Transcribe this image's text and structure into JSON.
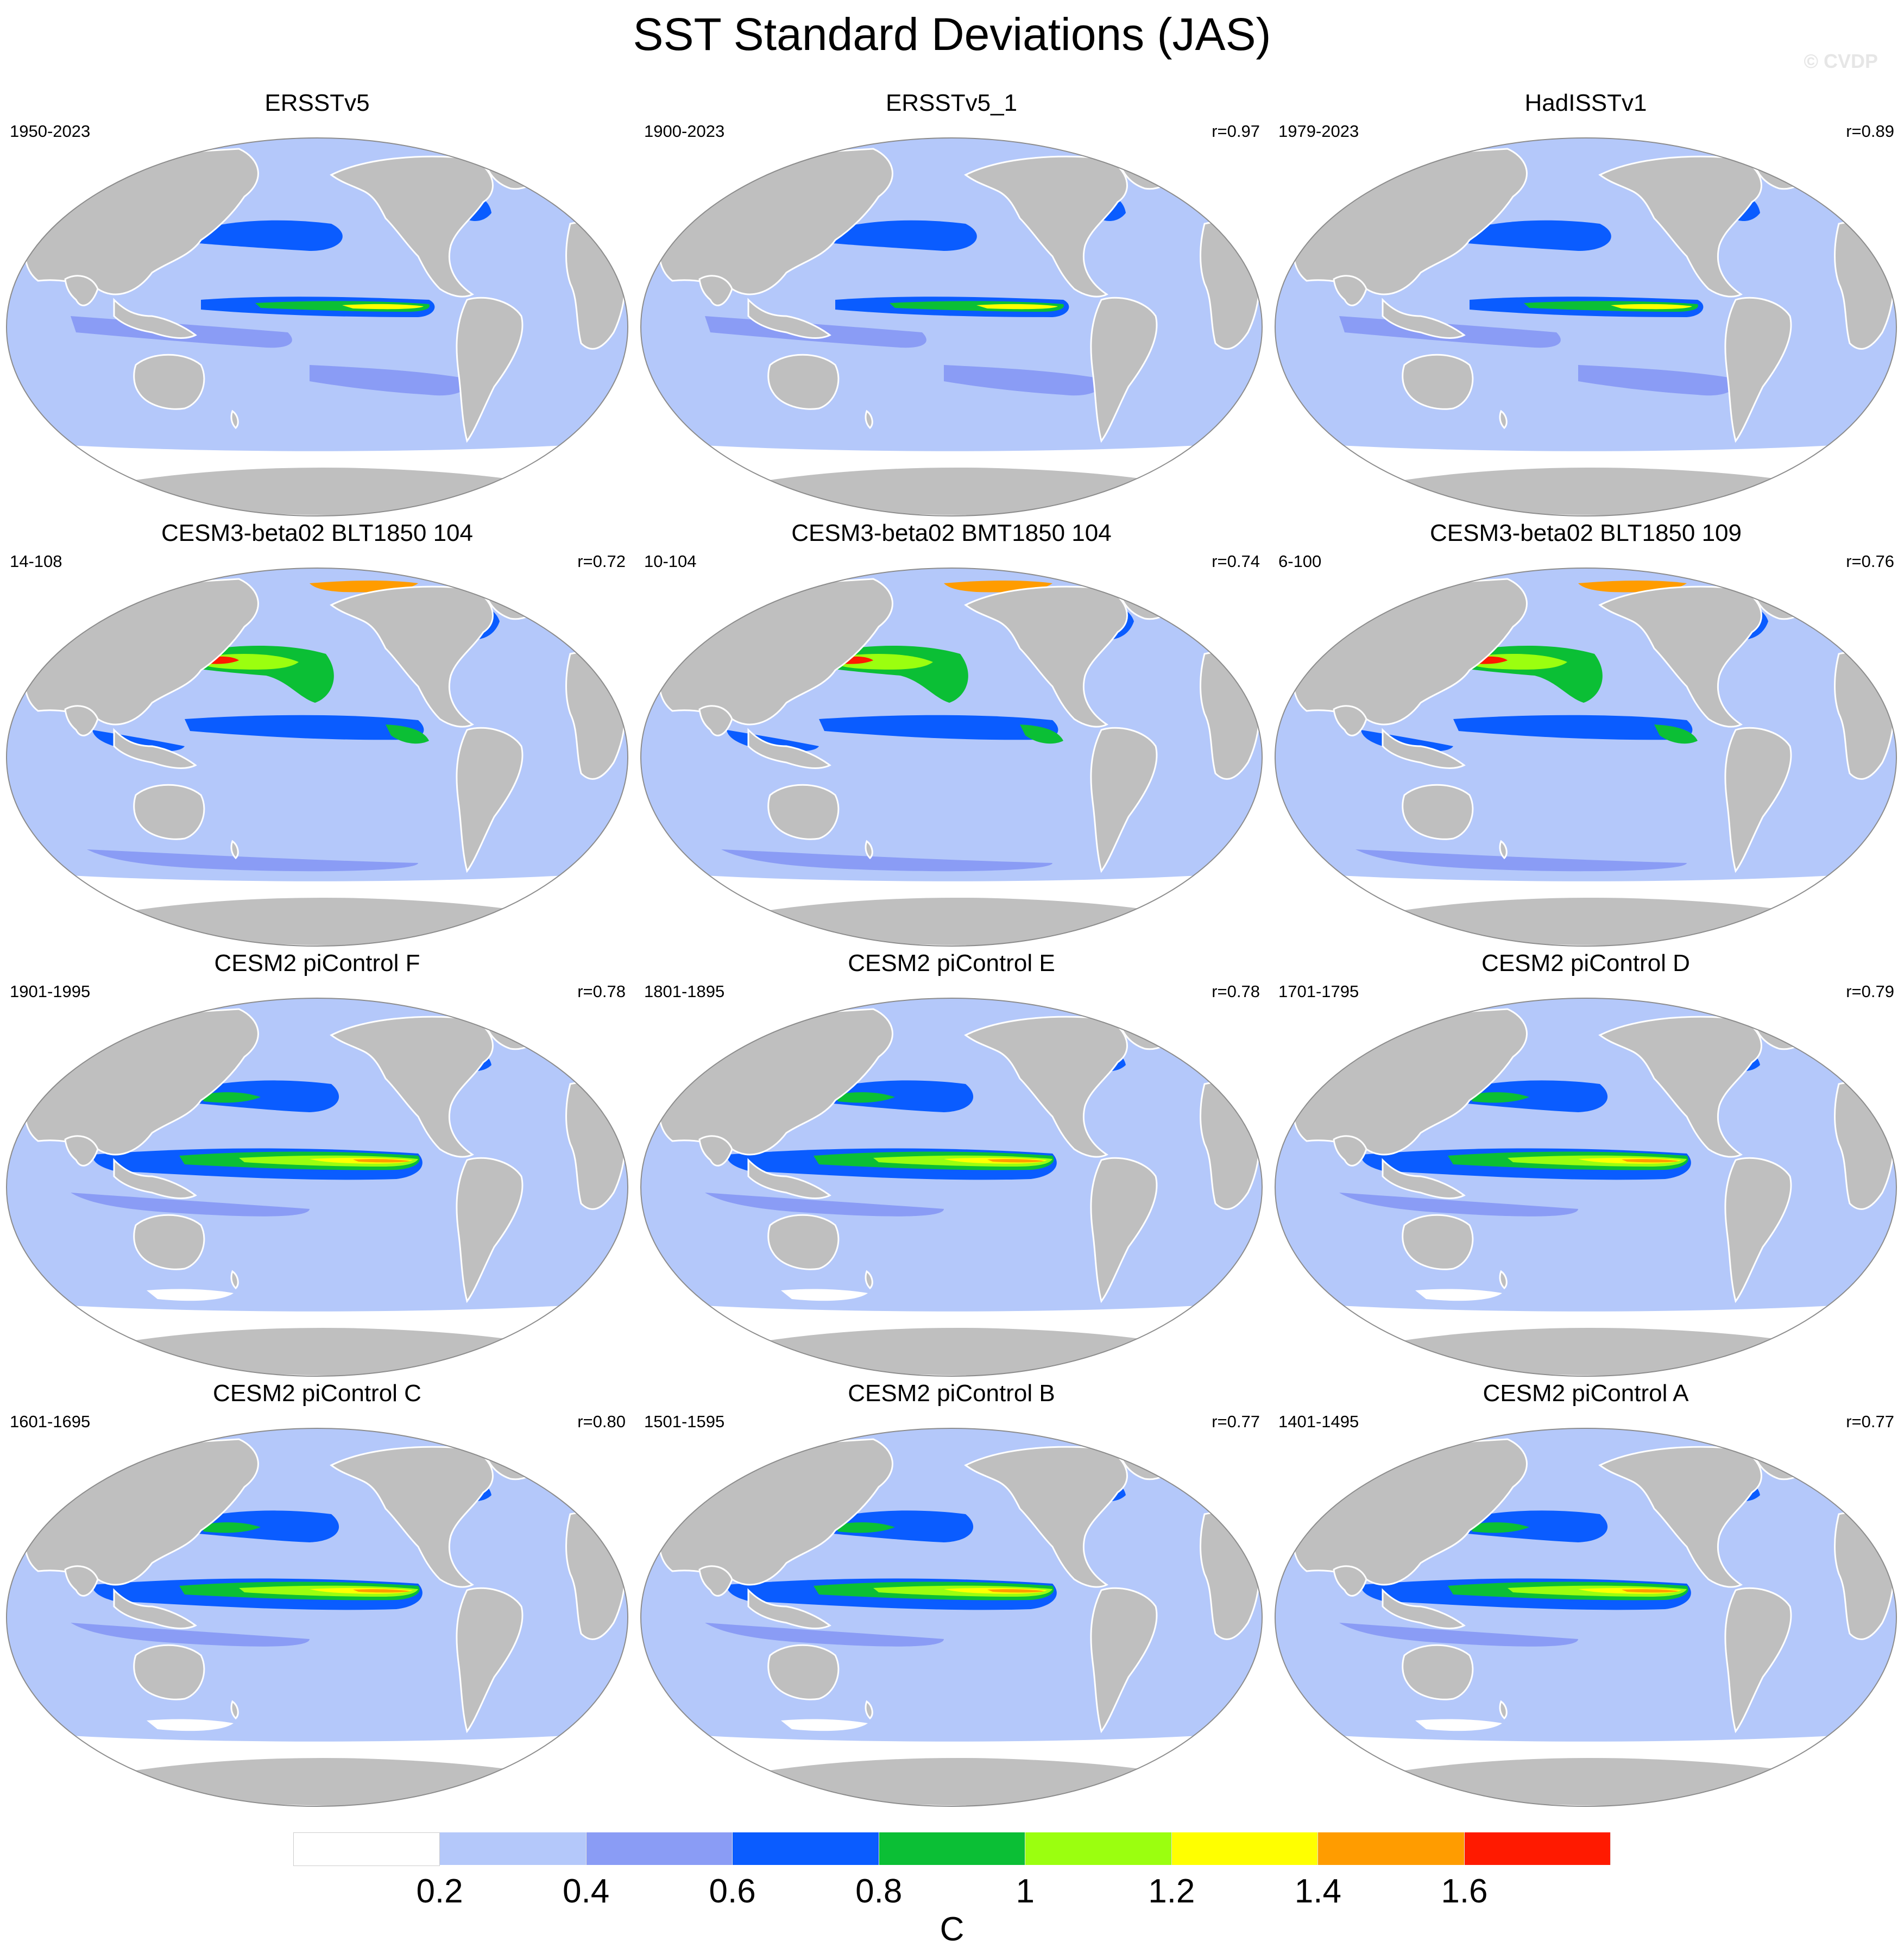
{
  "title": "SST Standard Deviations (JAS)",
  "watermark": "© CVDP",
  "colors": {
    "land": "#bfbfbf",
    "ocean_outline": "#8c8c8c",
    "levels": [
      "#ffffff",
      "#b4c8fa",
      "#8a9cf5",
      "#0a5cff",
      "#0bbf35",
      "#9bff0f",
      "#ffff00",
      "#ff9c00",
      "#ff1a00"
    ]
  },
  "colorbar": {
    "ticks": [
      "0.2",
      "0.4",
      "0.6",
      "0.8",
      "1",
      "1.2",
      "1.4",
      "1.6"
    ],
    "units": "C"
  },
  "panels": [
    {
      "title": "ERSSTv5",
      "period": "1950-2023",
      "corr": ""
    },
    {
      "title": "ERSSTv5_1",
      "period": "1900-2023",
      "corr": "r=0.97"
    },
    {
      "title": "HadISSTv1",
      "period": "1979-2023",
      "corr": "r=0.89"
    },
    {
      "title": "CESM3-beta02 BLT1850 104",
      "period": "14-108",
      "corr": "r=0.72"
    },
    {
      "title": "CESM3-beta02 BMT1850 104",
      "period": "10-104",
      "corr": "r=0.74"
    },
    {
      "title": "CESM3-beta02 BLT1850 109",
      "period": "6-100",
      "corr": "r=0.76"
    },
    {
      "title": "CESM2 piControl F",
      "period": "1901-1995",
      "corr": "r=0.78"
    },
    {
      "title": "CESM2 piControl E",
      "period": "1801-1895",
      "corr": "r=0.78"
    },
    {
      "title": "CESM2 piControl D",
      "period": "1701-1795",
      "corr": "r=0.79"
    },
    {
      "title": "CESM2 piControl C",
      "period": "1601-1695",
      "corr": "r=0.80"
    },
    {
      "title": "CESM2 piControl B",
      "period": "1501-1595",
      "corr": "r=0.77"
    },
    {
      "title": "CESM2 piControl A",
      "period": "1401-1495",
      "corr": "r=0.77"
    }
  ]
}
